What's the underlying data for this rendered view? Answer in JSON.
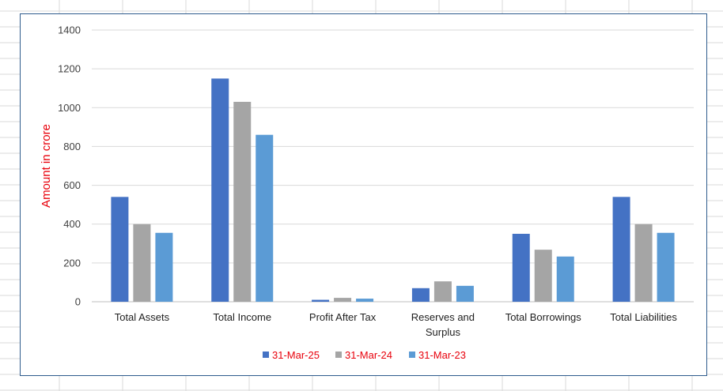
{
  "chart_data": {
    "type": "bar",
    "title": "",
    "xlabel": "",
    "ylabel": "Amount in crore",
    "ylim": [
      0,
      1400
    ],
    "yticks": [
      0,
      200,
      400,
      600,
      800,
      1000,
      1200,
      1400
    ],
    "grid": true,
    "legend_position": "bottom",
    "categories": [
      "Total Assets",
      "Total Income",
      "Profit After Tax",
      "Reserves and Surplus",
      "Total Borrowings",
      "Total Liabilities"
    ],
    "series": [
      {
        "name": "31-Mar-25",
        "color": "#4472c4",
        "values": [
          540,
          1150,
          10,
          70,
          350,
          540
        ]
      },
      {
        "name": "31-Mar-24",
        "color": "#a5a5a5",
        "values": [
          400,
          1030,
          20,
          105,
          268,
          400
        ]
      },
      {
        "name": "31-Mar-23",
        "color": "#5b9bd5",
        "values": [
          355,
          860,
          16,
          82,
          233,
          355
        ]
      }
    ]
  }
}
